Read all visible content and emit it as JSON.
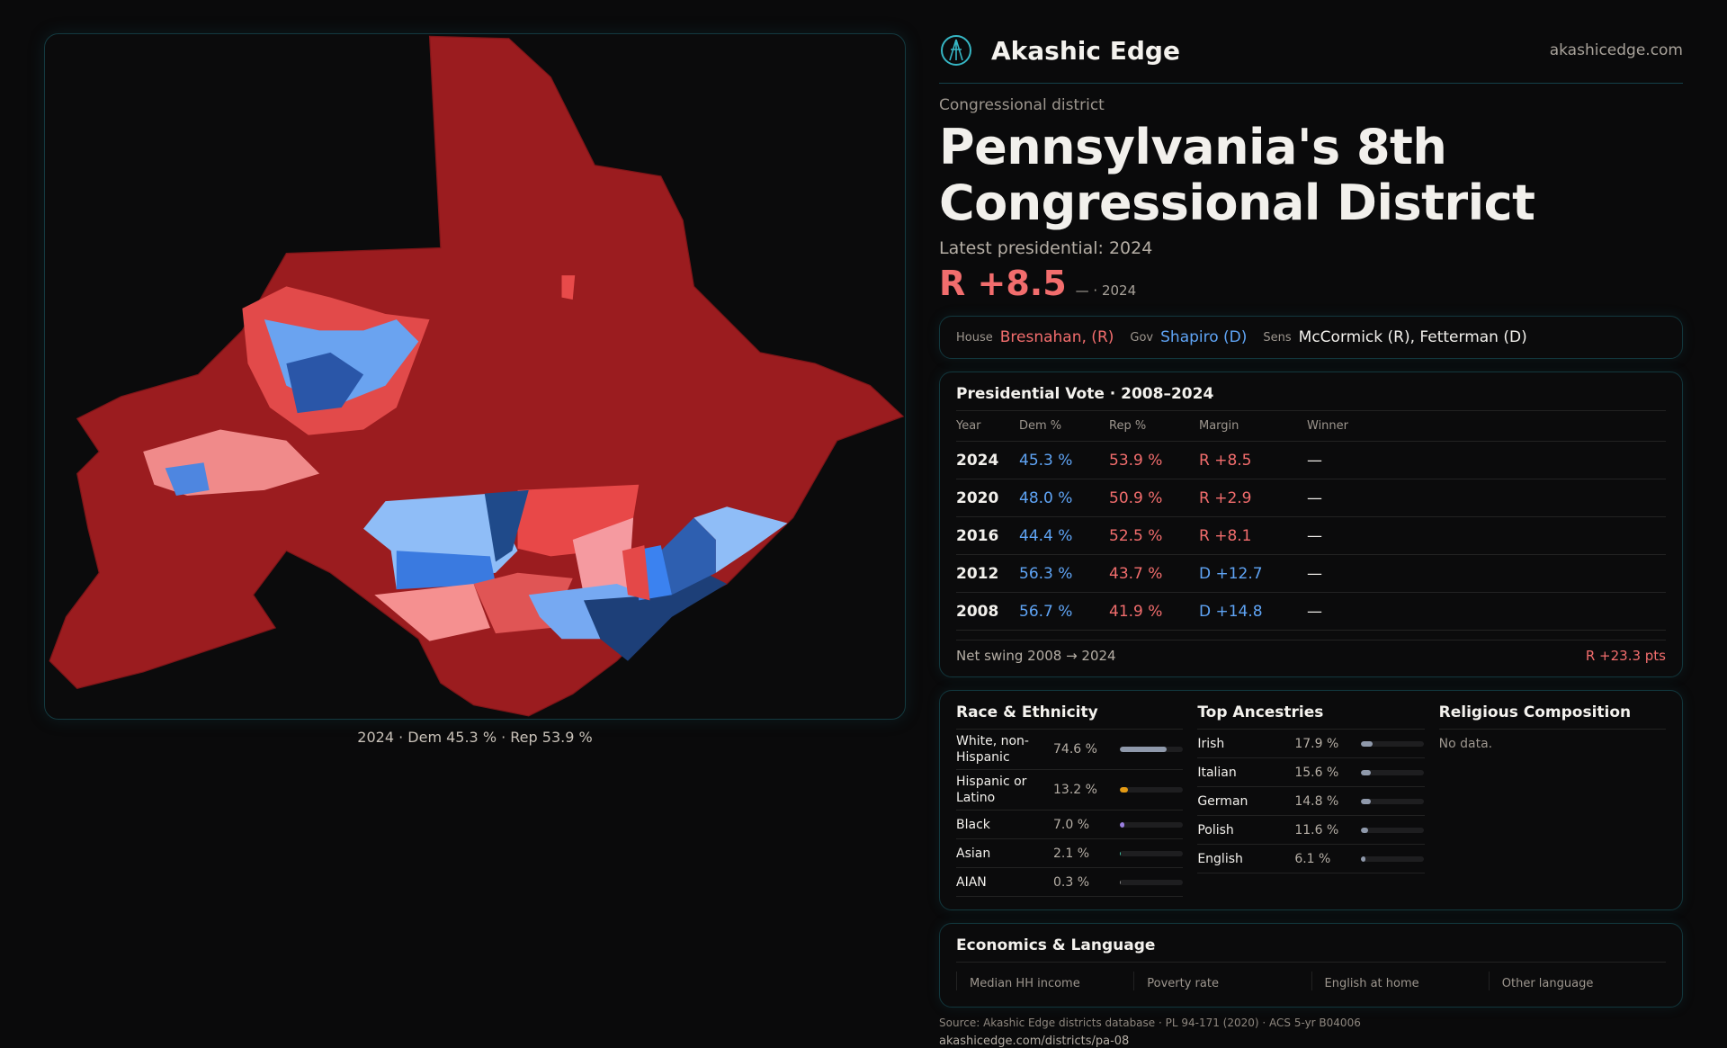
{
  "brand": {
    "name": "Akashic Edge",
    "site": "akashicedge.com"
  },
  "district": {
    "kicker": "Congressional district",
    "title": "Pennsylvania's 8th Congressional District",
    "latest": "Latest presidential: 2024",
    "margin": "R +8.5",
    "margin_sub": "— · 2024"
  },
  "officials": {
    "house_label": "House",
    "house": "Bresnahan, (R)",
    "gov_label": "Gov",
    "gov": "Shapiro (D)",
    "sens_label": "Sens",
    "sens": "McCormick (R), Fetterman (D)"
  },
  "map": {
    "caption": "2024 · Dem 45.3 % · Rep 53.9 %",
    "colors": {
      "rep": "#9b1c1f",
      "dem": "#2f6fd6"
    }
  },
  "presidential": {
    "title": "Presidential Vote · 2008–2024",
    "headers": [
      "Year",
      "Dem %",
      "Rep %",
      "Margin",
      "Winner"
    ],
    "rows": [
      {
        "year": "2024",
        "dem": "45.3 %",
        "rep": "53.9 %",
        "margin": "R +8.5",
        "winner": "—"
      },
      {
        "year": "2020",
        "dem": "48.0 %",
        "rep": "50.9 %",
        "margin": "R +2.9",
        "winner": "—"
      },
      {
        "year": "2016",
        "dem": "44.4 %",
        "rep": "52.5 %",
        "margin": "R +8.1",
        "winner": "—"
      },
      {
        "year": "2012",
        "dem": "56.3 %",
        "rep": "43.7 %",
        "margin": "D +12.7",
        "winner": "—"
      },
      {
        "year": "2008",
        "dem": "56.7 %",
        "rep": "41.9 %",
        "margin": "D +14.8",
        "winner": "—"
      }
    ],
    "swing_label": "Net swing 2008 → 2024",
    "swing": "R +23.3 pts"
  },
  "race": {
    "title": "Race & Ethnicity",
    "rows": [
      {
        "label": "White, non-Hispanic",
        "value": "74.6 %",
        "pct": 74.6,
        "color": "#8f99ab"
      },
      {
        "label": "Hispanic or Latino",
        "value": "13.2 %",
        "pct": 13.2,
        "color": "#e39a14"
      },
      {
        "label": "Black",
        "value": "7.0 %",
        "pct": 7.0,
        "color": "#9a7fe0"
      },
      {
        "label": "Asian",
        "value": "2.1 %",
        "pct": 2.1,
        "color": "#3fc0a0"
      },
      {
        "label": "AIAN",
        "value": "0.3 %",
        "pct": 0.3,
        "color": "#888888"
      }
    ]
  },
  "ancestry": {
    "title": "Top Ancestries",
    "rows": [
      {
        "label": "Irish",
        "value": "17.9 %",
        "pct": 17.9
      },
      {
        "label": "Italian",
        "value": "15.6 %",
        "pct": 15.6
      },
      {
        "label": "German",
        "value": "14.8 %",
        "pct": 14.8
      },
      {
        "label": "Polish",
        "value": "11.6 %",
        "pct": 11.6
      },
      {
        "label": "English",
        "value": "6.1 %",
        "pct": 6.1
      }
    ]
  },
  "religion": {
    "title": "Religious Composition",
    "empty": "No data."
  },
  "economics": {
    "title": "Economics & Language",
    "stats": [
      "Median HH income",
      "Poverty rate",
      "English at home",
      "Other language"
    ]
  },
  "footer": {
    "source": "Source: Akashic Edge districts database · PL 94-171 (2020) · ACS 5-yr B04006",
    "url": "akashicedge.com/districts/pa-08"
  }
}
